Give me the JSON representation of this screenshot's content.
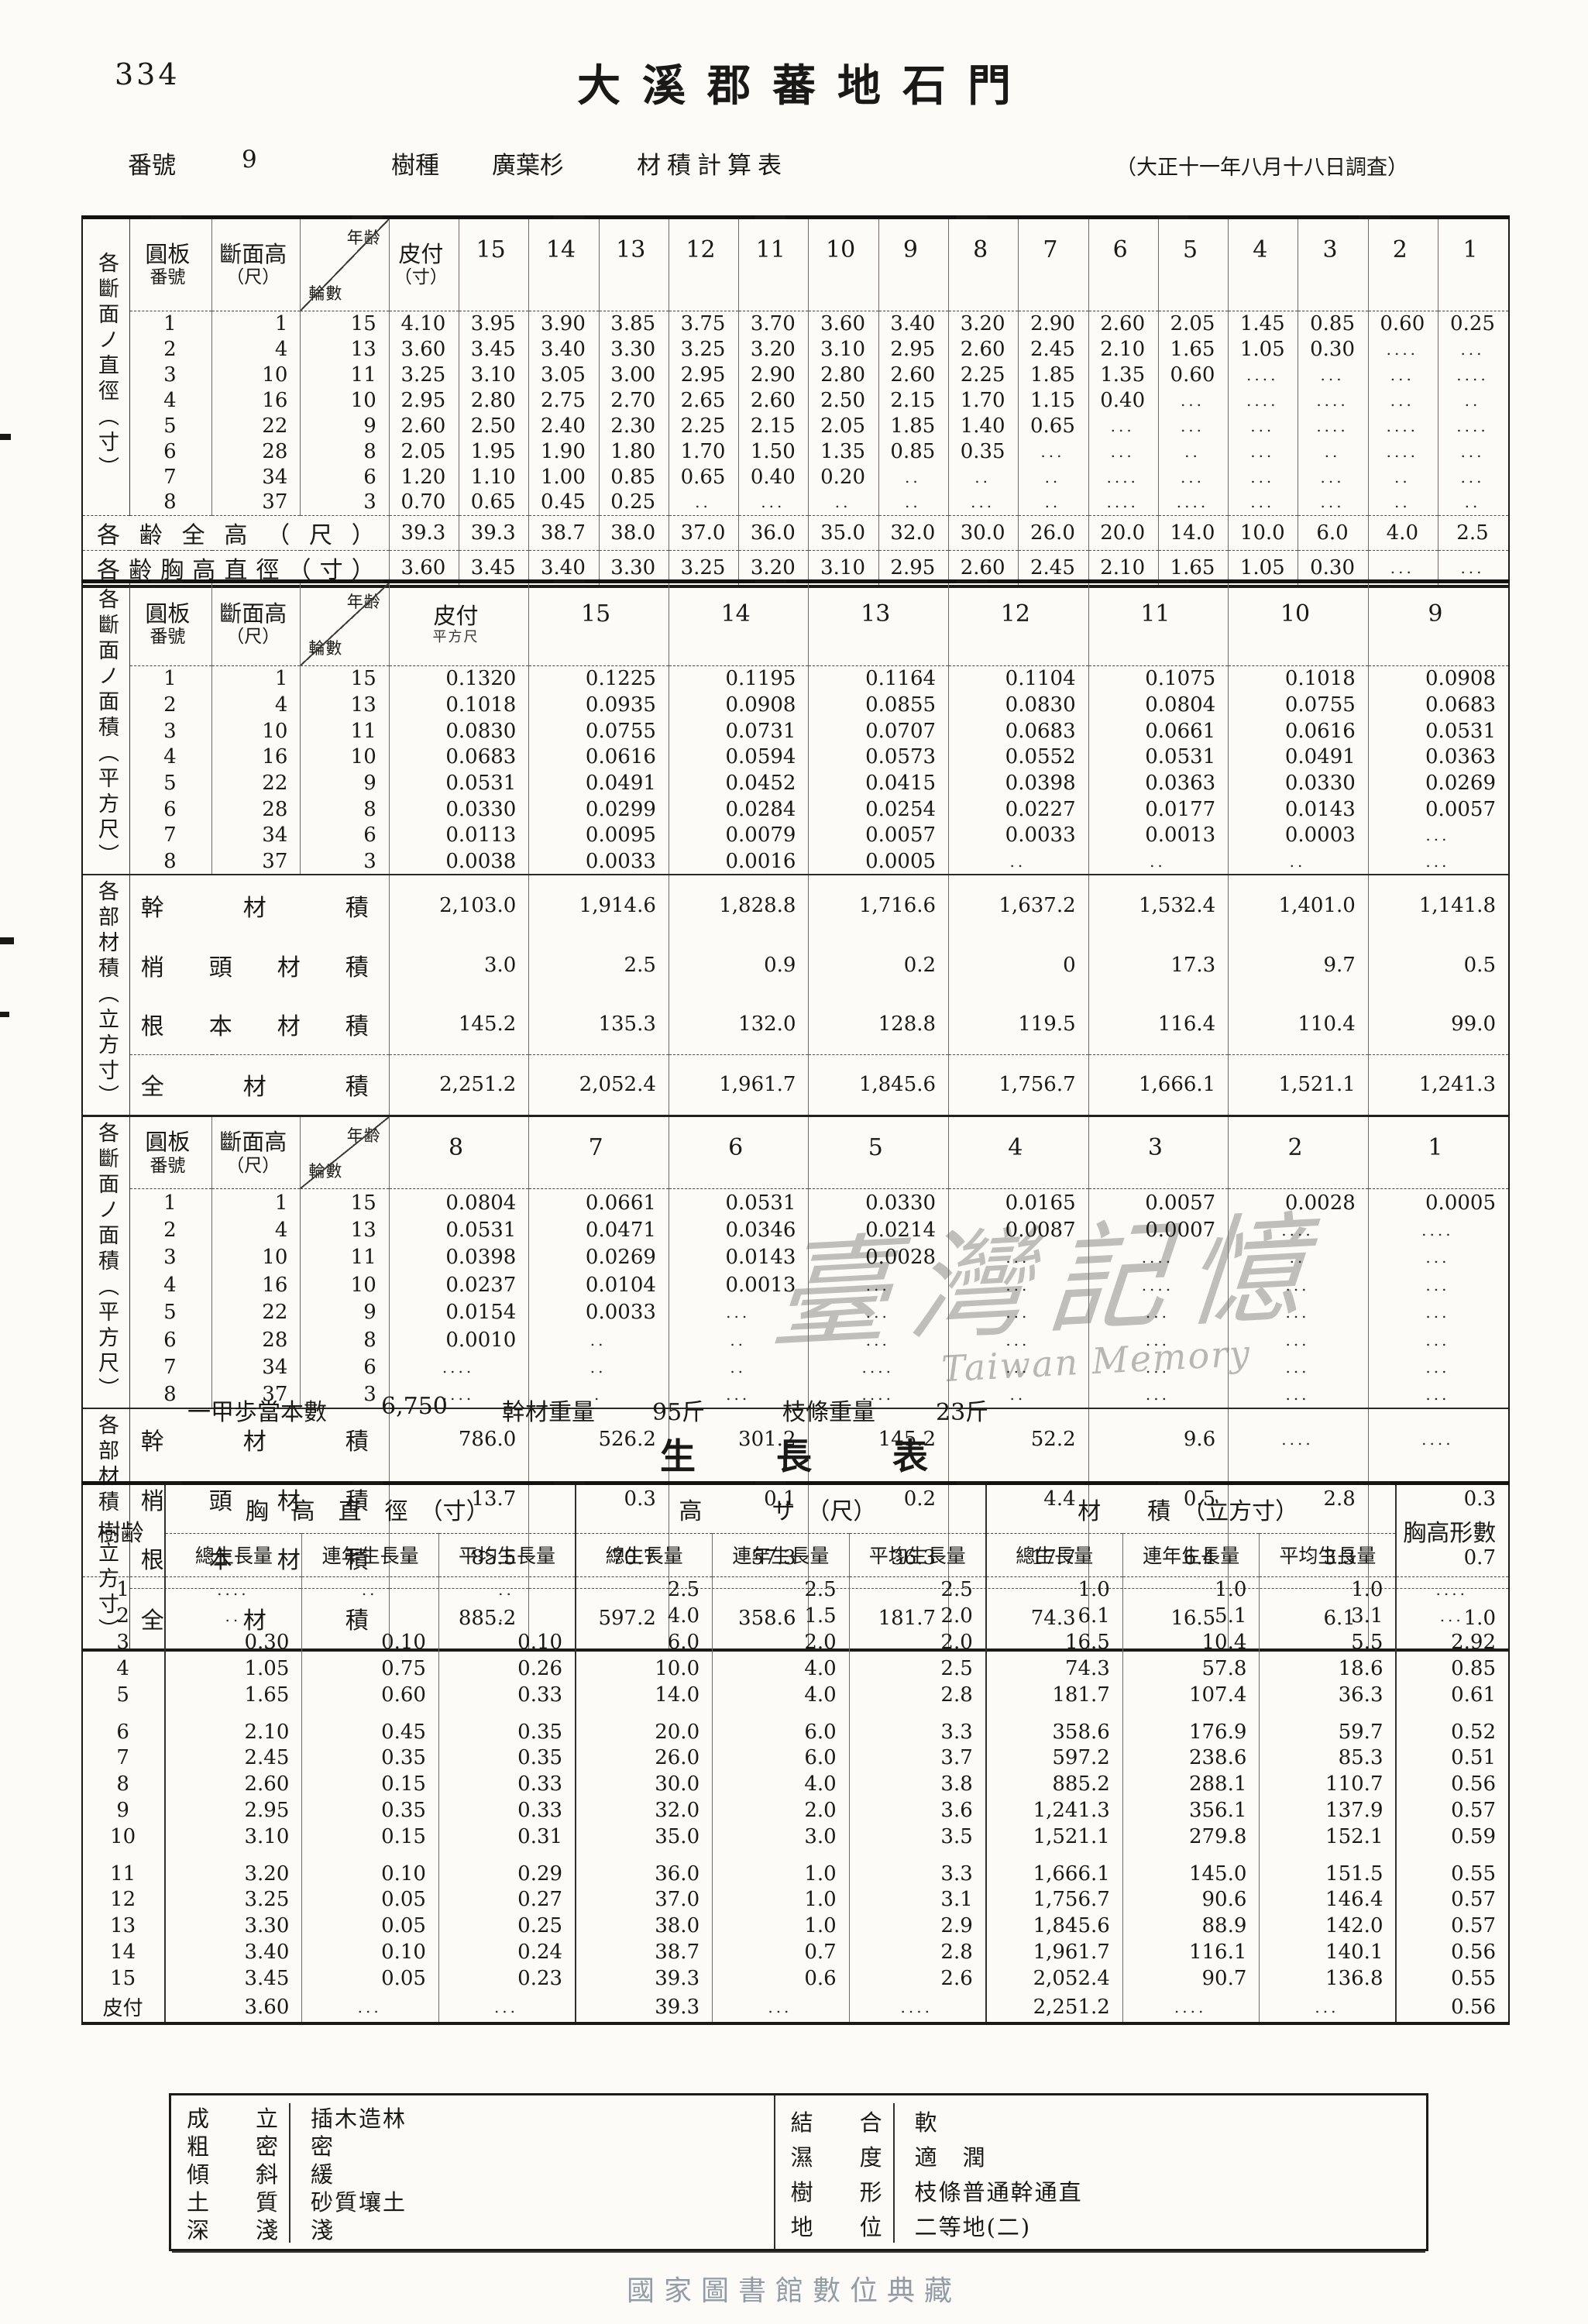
{
  "colors": {
    "paper": "#fcfbf7",
    "ink": "#1b1917",
    "watermark": "#7d7b78",
    "footer": "#929ca6"
  },
  "page": {
    "number": "334",
    "title": "大溪郡蕃地石門",
    "footer": "國家圖書館數位典藏"
  },
  "watermark": {
    "zh": "臺灣記憶",
    "en": "Taiwan Memory"
  },
  "subheader": {
    "no_label": "番號",
    "no_value": "9",
    "species_label": "樹種",
    "species_value": "廣葉杉",
    "doc_label": "材積計算表",
    "survey_note": "（大正十一年八月十八日調査）"
  },
  "common": {
    "disc1": "圓板",
    "disc2": "番號",
    "sh1": "斷面高",
    "sh2": "（尺）",
    "diag_top": "年齢",
    "diag_bottom": "輪數"
  },
  "table1": {
    "stub": "各斷面ノ直徑（寸）",
    "bark1": "皮付",
    "bark2": "（寸）",
    "ages": [
      "15",
      "14",
      "13",
      "12",
      "11",
      "10",
      "9",
      "8",
      "7",
      "6",
      "5",
      "4",
      "3",
      "2",
      "1"
    ],
    "rows": [
      {
        "no": "1",
        "h": "1",
        "rings": "15",
        "v": [
          "4.10",
          "3.95",
          "3.90",
          "3.85",
          "3.75",
          "3.70",
          "3.60",
          "3.40",
          "3.20",
          "2.90",
          "2.60",
          "2.05",
          "1.45",
          "0.85",
          "0.60",
          "0.25"
        ]
      },
      {
        "no": "2",
        "h": "4",
        "rings": "13",
        "v": [
          "3.60",
          "3.45",
          "3.40",
          "3.30",
          "3.25",
          "3.20",
          "3.10",
          "2.95",
          "2.60",
          "2.45",
          "2.10",
          "1.65",
          "1.05",
          "0.30",
          "....",
          "..."
        ]
      },
      {
        "no": "3",
        "h": "10",
        "rings": "11",
        "v": [
          "3.25",
          "3.10",
          "3.05",
          "3.00",
          "2.95",
          "2.90",
          "2.80",
          "2.60",
          "2.25",
          "1.85",
          "1.35",
          "0.60",
          "....",
          "...",
          "...",
          "...."
        ]
      },
      {
        "no": "4",
        "h": "16",
        "rings": "10",
        "v": [
          "2.95",
          "2.80",
          "2.75",
          "2.70",
          "2.65",
          "2.60",
          "2.50",
          "2.15",
          "1.70",
          "1.15",
          "0.40",
          "...",
          "....",
          "....",
          "...",
          ".."
        ]
      },
      {
        "no": "5",
        "h": "22",
        "rings": "9",
        "v": [
          "2.60",
          "2.50",
          "2.40",
          "2.30",
          "2.25",
          "2.15",
          "2.05",
          "1.85",
          "1.40",
          "0.65",
          "...",
          "...",
          "...",
          "....",
          "....",
          "...."
        ]
      },
      {
        "no": "6",
        "h": "28",
        "rings": "8",
        "v": [
          "2.05",
          "1.95",
          "1.90",
          "1.80",
          "1.70",
          "1.50",
          "1.35",
          "0.85",
          "0.35",
          "...",
          "...",
          "..",
          "...",
          "..",
          "....",
          "..."
        ]
      },
      {
        "no": "7",
        "h": "34",
        "rings": "6",
        "v": [
          "1.20",
          "1.10",
          "1.00",
          "0.85",
          "0.65",
          "0.40",
          "0.20",
          "..",
          "..",
          "..",
          "....",
          "...",
          "...",
          "...",
          "..",
          "..."
        ]
      },
      {
        "no": "8",
        "h": "37",
        "rings": "3",
        "v": [
          "0.70",
          "0.65",
          "0.45",
          "0.25",
          "..",
          "...",
          "..",
          "..",
          "...",
          "..",
          "....",
          "....",
          "...",
          "...",
          "..",
          ".."
        ]
      }
    ],
    "summary": [
      {
        "label": "各齢全高（尺）",
        "v": [
          "39.3",
          "39.3",
          "38.7",
          "38.0",
          "37.0",
          "36.0",
          "35.0",
          "32.0",
          "30.0",
          "26.0",
          "20.0",
          "14.0",
          "10.0",
          "6.0",
          "4.0",
          "2.5"
        ]
      },
      {
        "label": "各齢胸高直徑（寸）",
        "v": [
          "3.60",
          "3.45",
          "3.40",
          "3.30",
          "3.25",
          "3.20",
          "3.10",
          "2.95",
          "2.60",
          "2.45",
          "2.10",
          "1.65",
          "1.05",
          "0.30",
          "...",
          "..."
        ]
      }
    ]
  },
  "table2": {
    "stub_area": "各斷面ノ面積（平方尺）",
    "stub_vol": "各部材積（立方寸）",
    "bark1": "皮付",
    "bark_small": "平方尺",
    "ages_a": [
      "15",
      "14",
      "13",
      "12",
      "11",
      "10",
      "9"
    ],
    "ages_b": [
      "8",
      "7",
      "6",
      "5",
      "4",
      "3",
      "2",
      "1"
    ],
    "rows_a": [
      {
        "no": "1",
        "h": "1",
        "rings": "15",
        "v": [
          "0.1320",
          "0.1225",
          "0.1195",
          "0.1164",
          "0.1104",
          "0.1075",
          "0.1018",
          "0.0908"
        ]
      },
      {
        "no": "2",
        "h": "4",
        "rings": "13",
        "v": [
          "0.1018",
          "0.0935",
          "0.0908",
          "0.0855",
          "0.0830",
          "0.0804",
          "0.0755",
          "0.0683"
        ]
      },
      {
        "no": "3",
        "h": "10",
        "rings": "11",
        "v": [
          "0.0830",
          "0.0755",
          "0.0731",
          "0.0707",
          "0.0683",
          "0.0661",
          "0.0616",
          "0.0531"
        ]
      },
      {
        "no": "4",
        "h": "16",
        "rings": "10",
        "v": [
          "0.0683",
          "0.0616",
          "0.0594",
          "0.0573",
          "0.0552",
          "0.0531",
          "0.0491",
          "0.0363"
        ]
      },
      {
        "no": "5",
        "h": "22",
        "rings": "9",
        "v": [
          "0.0531",
          "0.0491",
          "0.0452",
          "0.0415",
          "0.0398",
          "0.0363",
          "0.0330",
          "0.0269"
        ]
      },
      {
        "no": "6",
        "h": "28",
        "rings": "8",
        "v": [
          "0.0330",
          "0.0299",
          "0.0284",
          "0.0254",
          "0.0227",
          "0.0177",
          "0.0143",
          "0.0057"
        ]
      },
      {
        "no": "7",
        "h": "34",
        "rings": "6",
        "v": [
          "0.0113",
          "0.0095",
          "0.0079",
          "0.0057",
          "0.0033",
          "0.0013",
          "0.0003",
          "..."
        ]
      },
      {
        "no": "8",
        "h": "37",
        "rings": "3",
        "v": [
          "0.0038",
          "0.0033",
          "0.0016",
          "0.0005",
          "..",
          "..",
          "..",
          "..."
        ]
      }
    ],
    "rows_b": [
      {
        "no": "1",
        "h": "1",
        "rings": "15",
        "v": [
          "0.0804",
          "0.0661",
          "0.0531",
          "0.0330",
          "0.0165",
          "0.0057",
          "0.0028",
          "0.0005"
        ]
      },
      {
        "no": "2",
        "h": "4",
        "rings": "13",
        "v": [
          "0.0531",
          "0.0471",
          "0.0346",
          "0.0214",
          "0.0087",
          "0.0007",
          "....",
          "...."
        ]
      },
      {
        "no": "3",
        "h": "10",
        "rings": "11",
        "v": [
          "0.0398",
          "0.0269",
          "0.0143",
          "0.0028",
          "...",
          "....",
          "..",
          "..."
        ]
      },
      {
        "no": "4",
        "h": "16",
        "rings": "10",
        "v": [
          "0.0237",
          "0.0104",
          "0.0013",
          "...",
          "...",
          "....",
          "...",
          "..."
        ]
      },
      {
        "no": "5",
        "h": "22",
        "rings": "9",
        "v": [
          "0.0154",
          "0.0033",
          "...",
          "...",
          "...",
          "...",
          "...",
          "..."
        ]
      },
      {
        "no": "6",
        "h": "28",
        "rings": "8",
        "v": [
          "0.0010",
          "..",
          "..",
          "...",
          "...",
          "...",
          "...",
          "..."
        ]
      },
      {
        "no": "7",
        "h": "34",
        "rings": "6",
        "v": [
          "....",
          "..",
          "..",
          "....",
          "...",
          "...",
          "...",
          "..."
        ]
      },
      {
        "no": "8",
        "h": "37",
        "rings": "3",
        "v": [
          "....",
          ".",
          "...",
          "....",
          "..",
          "...",
          "...",
          "..."
        ]
      }
    ],
    "vol_labels": [
      "幹材積",
      "梢頭材積",
      "根本材積",
      "全材積"
    ],
    "vols_a": [
      [
        "2,103.0",
        "1,914.6",
        "1,828.8",
        "1,716.6",
        "1,637.2",
        "1,532.4",
        "1,401.0",
        "1,141.8"
      ],
      [
        "3.0",
        "2.5",
        "0.9",
        "0.2",
        "0",
        "17.3",
        "9.7",
        "0.5"
      ],
      [
        "145.2",
        "135.3",
        "132.0",
        "128.8",
        "119.5",
        "116.4",
        "110.4",
        "99.0"
      ],
      [
        "2,251.2",
        "2,052.4",
        "1,961.7",
        "1,845.6",
        "1,756.7",
        "1,666.1",
        "1,521.1",
        "1,241.3"
      ]
    ],
    "vols_b": [
      [
        "786.0",
        "526.2",
        "301.2",
        "145.2",
        "52.2",
        "9.6",
        "....",
        "...."
      ],
      [
        "13.7",
        "0.3",
        "0.1",
        "0.2",
        "4.4",
        "0.5",
        "2.8",
        "0.3"
      ],
      [
        "85.5",
        "70.7",
        "57.3",
        "36.3",
        "17.7",
        "6.4",
        "3.3",
        "0.7"
      ],
      [
        "885.2",
        "597.2",
        "358.6",
        "181.7",
        "74.3",
        "16.5",
        "6.1",
        "1.0"
      ]
    ]
  },
  "notes": {
    "l1": "一甲歩當本數",
    "v1": "6,750",
    "l2": "幹材重量",
    "v2": "95斤",
    "l3": "枝條重量",
    "v3": "23斤"
  },
  "growth": {
    "title": "生長表",
    "age_label": "樹齢",
    "groups": [
      "胸　高　直　徑　（寸）",
      "高　　　サ　（尺）",
      "材　　積　（立方寸）"
    ],
    "subheaders": [
      "總生長量",
      "連年生長量",
      "平均生長量"
    ],
    "form_label": "胸高形數",
    "rows": [
      [
        "1",
        "....",
        "..",
        "..",
        "2.5",
        "2.5",
        "2.5",
        "1.0",
        "1.0",
        "1.0",
        "...."
      ],
      [
        "2",
        "..",
        "",
        "..",
        "4.0",
        "1.5",
        "2.0",
        "6.1",
        "5.1",
        "3.1",
        "..."
      ],
      [
        "3",
        "0.30",
        "0.10",
        "0.10",
        "6.0",
        "2.0",
        "2.0",
        "16.5",
        "10.4",
        "5.5",
        "2.92"
      ],
      [
        "4",
        "1.05",
        "0.75",
        "0.26",
        "10.0",
        "4.0",
        "2.5",
        "74.3",
        "57.8",
        "18.6",
        "0.85"
      ],
      [
        "5",
        "1.65",
        "0.60",
        "0.33",
        "14.0",
        "4.0",
        "2.8",
        "181.7",
        "107.4",
        "36.3",
        "0.61"
      ],
      [
        "6",
        "2.10",
        "0.45",
        "0.35",
        "20.0",
        "6.0",
        "3.3",
        "358.6",
        "176.9",
        "59.7",
        "0.52"
      ],
      [
        "7",
        "2.45",
        "0.35",
        "0.35",
        "26.0",
        "6.0",
        "3.7",
        "597.2",
        "238.6",
        "85.3",
        "0.51"
      ],
      [
        "8",
        "2.60",
        "0.15",
        "0.33",
        "30.0",
        "4.0",
        "3.8",
        "885.2",
        "288.1",
        "110.7",
        "0.56"
      ],
      [
        "9",
        "2.95",
        "0.35",
        "0.33",
        "32.0",
        "2.0",
        "3.6",
        "1,241.3",
        "356.1",
        "137.9",
        "0.57"
      ],
      [
        "10",
        "3.10",
        "0.15",
        "0.31",
        "35.0",
        "3.0",
        "3.5",
        "1,521.1",
        "279.8",
        "152.1",
        "0.59"
      ],
      [
        "11",
        "3.20",
        "0.10",
        "0.29",
        "36.0",
        "1.0",
        "3.3",
        "1,666.1",
        "145.0",
        "151.5",
        "0.55"
      ],
      [
        "12",
        "3.25",
        "0.05",
        "0.27",
        "37.0",
        "1.0",
        "3.1",
        "1,756.7",
        "90.6",
        "146.4",
        "0.57"
      ],
      [
        "13",
        "3.30",
        "0.05",
        "0.25",
        "38.0",
        "1.0",
        "2.9",
        "1,845.6",
        "88.9",
        "142.0",
        "0.57"
      ],
      [
        "14",
        "3.40",
        "0.10",
        "0.24",
        "38.7",
        "0.7",
        "2.8",
        "1,961.7",
        "116.1",
        "140.1",
        "0.56"
      ],
      [
        "15",
        "3.45",
        "0.05",
        "0.23",
        "39.3",
        "0.6",
        "2.6",
        "2,052.4",
        "90.7",
        "136.8",
        "0.55"
      ],
      [
        "皮付",
        "3.60",
        "...",
        "...",
        "39.3",
        "...",
        "....",
        "2,251.2",
        "....",
        "...",
        "0.56"
      ]
    ]
  },
  "conditions": {
    "left": [
      {
        "label": "成立",
        "value": "插木造林"
      },
      {
        "label": "粗密",
        "value": "密"
      },
      {
        "label": "傾斜",
        "value": "緩"
      },
      {
        "label": "土質",
        "value": "砂質壤土"
      },
      {
        "label": "深淺",
        "value": "淺"
      }
    ],
    "right": [
      {
        "label": "結合",
        "value": "軟"
      },
      {
        "label": "濕度",
        "value": "適　潤"
      },
      {
        "label": "樹形",
        "value": "枝條普通幹通直"
      },
      {
        "label": "地位",
        "value": "二等地(二)"
      }
    ]
  }
}
